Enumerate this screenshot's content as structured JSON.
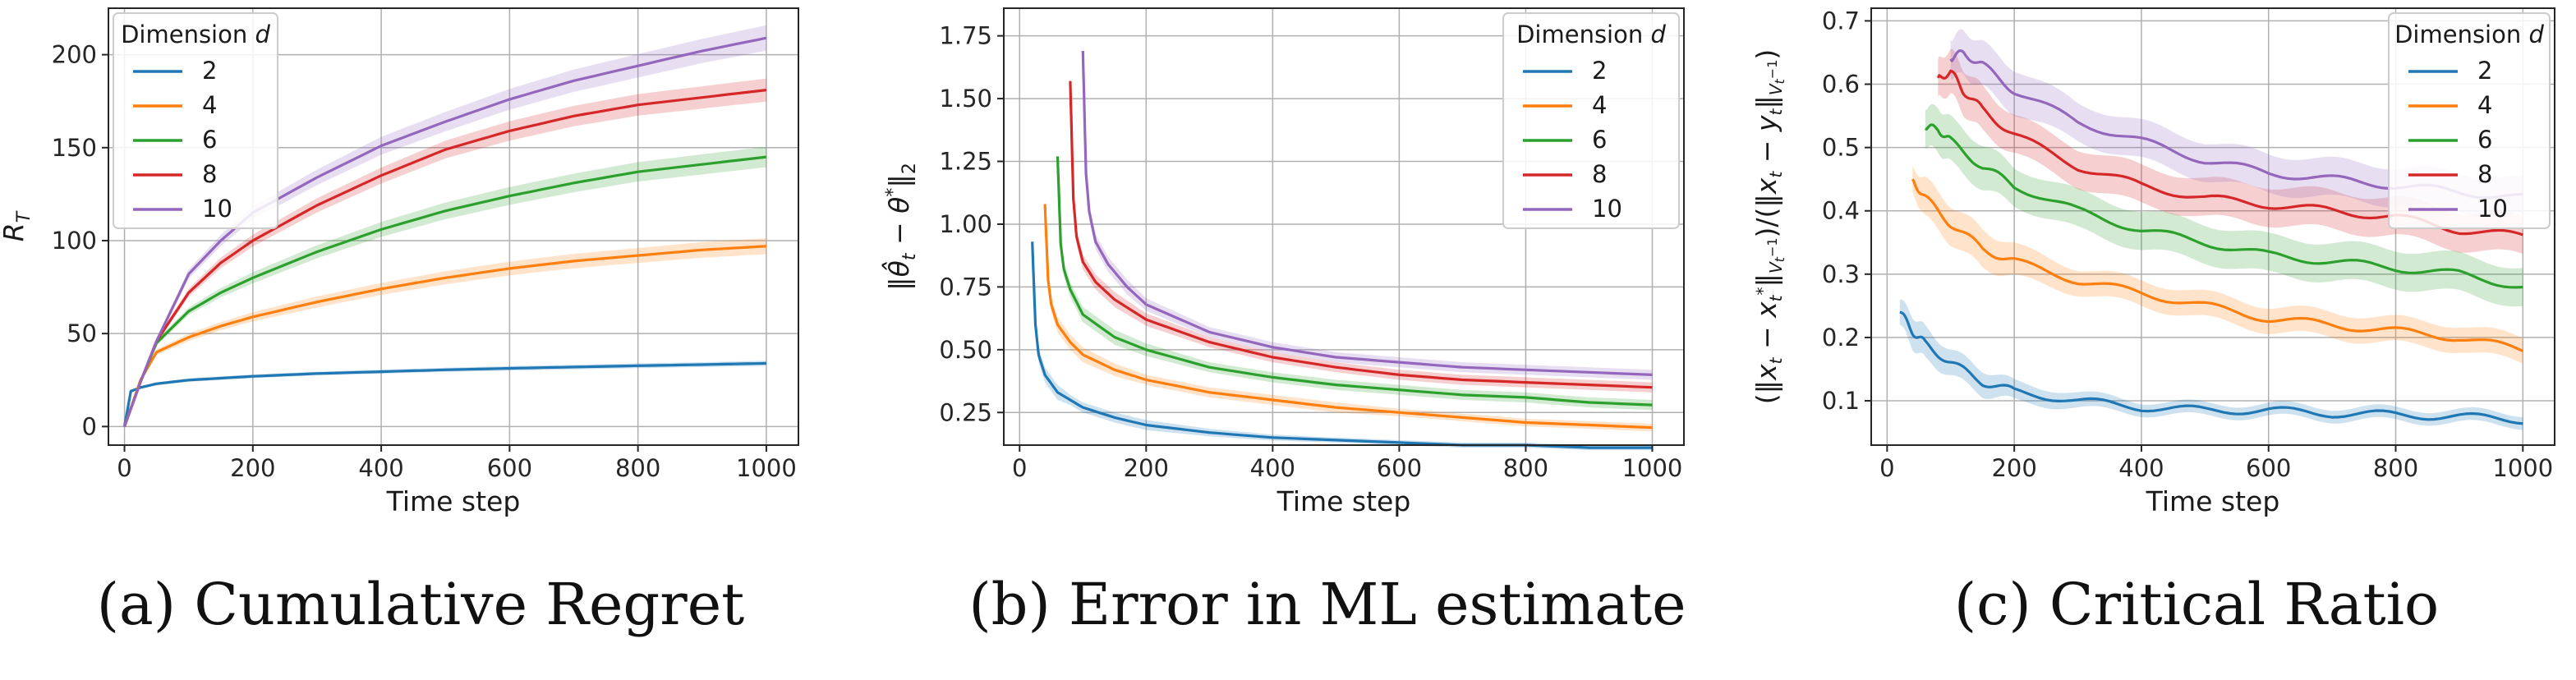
{
  "legend": {
    "title": "Dimension d",
    "entries": [
      "2",
      "4",
      "6",
      "8",
      "10"
    ],
    "colors": [
      "#1f77b4",
      "#ff7f0e",
      "#2ca02c",
      "#d62728",
      "#9467bd"
    ]
  },
  "chart_data": [
    {
      "type": "line",
      "caption": "(a) Cumulative Regret",
      "xlabel": "Time step",
      "ylabel": "R_T",
      "xlim": [
        -25,
        1050
      ],
      "ylim": [
        -10,
        225
      ],
      "xticks": [
        0,
        200,
        400,
        600,
        800,
        1000
      ],
      "yticks": [
        0,
        50,
        100,
        150,
        200
      ],
      "ytick_labels": [
        "0",
        "50",
        "100",
        "150",
        "200"
      ],
      "grid": true,
      "legend_placement": "top-left",
      "series": [
        {
          "name": "2",
          "x": [
            0,
            10,
            25,
            50,
            100,
            200,
            300,
            400,
            500,
            600,
            700,
            800,
            900,
            1000
          ],
          "y": [
            0,
            19,
            21,
            23,
            25,
            27,
            28.5,
            29.5,
            30.5,
            31.3,
            32,
            32.7,
            33.3,
            34
          ],
          "band": [
            0.6,
            0.6,
            0.8,
            0.8,
            0.9,
            1,
            1,
            1.1,
            1.1,
            1.2,
            1.2,
            1.3,
            1.3,
            1.4
          ]
        },
        {
          "name": "4",
          "x": [
            0,
            25,
            50,
            100,
            150,
            200,
            300,
            400,
            500,
            600,
            700,
            800,
            900,
            1000
          ],
          "y": [
            0,
            25,
            40,
            48,
            54,
            59,
            67,
            74,
            80,
            85,
            89,
            92,
            95,
            97
          ],
          "band": [
            0.5,
            1,
            1.5,
            2,
            2.2,
            2.5,
            3,
            3.2,
            3.5,
            3.7,
            3.9,
            4,
            4.2,
            4.3
          ]
        },
        {
          "name": "6",
          "x": [
            0,
            25,
            50,
            100,
            150,
            200,
            300,
            400,
            500,
            600,
            700,
            800,
            900,
            1000
          ],
          "y": [
            0,
            24,
            45,
            62,
            72,
            80,
            94,
            106,
            116,
            124,
            131,
            137,
            141,
            145
          ],
          "band": [
            0.5,
            1,
            1.5,
            2,
            2.5,
            3,
            3.5,
            4,
            4.5,
            4.8,
            5,
            5.2,
            5.4,
            5.5
          ]
        },
        {
          "name": "8",
          "x": [
            0,
            25,
            50,
            100,
            150,
            200,
            300,
            400,
            500,
            600,
            700,
            800,
            900,
            1000
          ],
          "y": [
            0,
            24,
            46,
            72,
            88,
            100,
            119,
            135,
            149,
            159,
            167,
            173,
            177,
            181
          ],
          "band": [
            0.5,
            1,
            1.5,
            2.2,
            2.8,
            3.2,
            3.8,
            4.3,
            4.8,
            5.2,
            5.5,
            5.8,
            6,
            6.2
          ]
        },
        {
          "name": "10",
          "x": [
            0,
            25,
            50,
            100,
            150,
            200,
            300,
            400,
            500,
            600,
            700,
            800,
            900,
            1000
          ],
          "y": [
            0,
            24,
            46,
            82,
            100,
            115,
            134,
            151,
            164,
            176,
            186,
            194,
            202,
            209
          ],
          "band": [
            0.5,
            1,
            1.5,
            2.5,
            3,
            3.5,
            4.2,
            4.8,
            5.2,
            5.6,
            6,
            6.3,
            6.5,
            6.8
          ]
        }
      ]
    },
    {
      "type": "line",
      "caption": "(b) Error in ML estimate",
      "xlabel": "Time step",
      "ylabel": "‖θ̂_t − θ*‖₂",
      "xlim": [
        -25,
        1050
      ],
      "ylim": [
        0.12,
        1.86
      ],
      "xticks": [
        0,
        200,
        400,
        600,
        800,
        1000
      ],
      "yticks": [
        0.25,
        0.5,
        0.75,
        1.0,
        1.25,
        1.5,
        1.75
      ],
      "ytick_labels": [
        "0.25",
        "0.50",
        "0.75",
        "1.00",
        "1.25",
        "1.50",
        "1.75"
      ],
      "grid": true,
      "legend_placement": "top-right",
      "series": [
        {
          "name": "2",
          "x": [
            20,
            25,
            30,
            40,
            60,
            80,
            100,
            150,
            200,
            300,
            400,
            500,
            600,
            700,
            800,
            900,
            1000
          ],
          "y": [
            0.93,
            0.6,
            0.48,
            0.4,
            0.33,
            0.3,
            0.27,
            0.23,
            0.2,
            0.17,
            0.15,
            0.14,
            0.13,
            0.12,
            0.12,
            0.11,
            0.11
          ],
          "band": [
            0.02,
            0.03,
            0.03,
            0.03,
            0.03,
            0.02,
            0.02,
            0.02,
            0.02,
            0.015,
            0.012,
            0.01,
            0.01,
            0.01,
            0.01,
            0.01,
            0.01
          ]
        },
        {
          "name": "4",
          "x": [
            40,
            45,
            50,
            60,
            80,
            100,
            150,
            200,
            300,
            400,
            500,
            600,
            700,
            800,
            900,
            1000
          ],
          "y": [
            1.08,
            0.78,
            0.68,
            0.6,
            0.53,
            0.48,
            0.42,
            0.38,
            0.33,
            0.3,
            0.27,
            0.25,
            0.23,
            0.21,
            0.2,
            0.19
          ],
          "band": [
            0.02,
            0.03,
            0.03,
            0.03,
            0.03,
            0.03,
            0.025,
            0.02,
            0.02,
            0.02,
            0.02,
            0.015,
            0.015,
            0.015,
            0.015,
            0.015
          ]
        },
        {
          "name": "6",
          "x": [
            60,
            65,
            70,
            80,
            100,
            150,
            200,
            300,
            400,
            500,
            600,
            700,
            800,
            900,
            1000
          ],
          "y": [
            1.27,
            0.92,
            0.82,
            0.74,
            0.64,
            0.55,
            0.5,
            0.43,
            0.39,
            0.36,
            0.34,
            0.32,
            0.31,
            0.29,
            0.28
          ],
          "band": [
            0.02,
            0.03,
            0.03,
            0.03,
            0.03,
            0.03,
            0.025,
            0.02,
            0.02,
            0.02,
            0.02,
            0.02,
            0.02,
            0.02,
            0.02
          ]
        },
        {
          "name": "8",
          "x": [
            80,
            85,
            90,
            100,
            120,
            150,
            200,
            300,
            400,
            500,
            600,
            700,
            800,
            900,
            1000
          ],
          "y": [
            1.57,
            1.1,
            0.95,
            0.85,
            0.77,
            0.7,
            0.62,
            0.53,
            0.47,
            0.43,
            0.4,
            0.38,
            0.37,
            0.36,
            0.35
          ],
          "band": [
            0.02,
            0.03,
            0.03,
            0.03,
            0.03,
            0.03,
            0.025,
            0.02,
            0.02,
            0.02,
            0.02,
            0.02,
            0.02,
            0.02,
            0.02
          ]
        },
        {
          "name": "10",
          "x": [
            100,
            105,
            110,
            120,
            140,
            170,
            200,
            300,
            400,
            500,
            600,
            700,
            800,
            900,
            1000
          ],
          "y": [
            1.69,
            1.2,
            1.05,
            0.93,
            0.84,
            0.75,
            0.68,
            0.57,
            0.51,
            0.47,
            0.45,
            0.43,
            0.42,
            0.41,
            0.4
          ],
          "band": [
            0.02,
            0.03,
            0.03,
            0.03,
            0.03,
            0.03,
            0.025,
            0.02,
            0.02,
            0.02,
            0.02,
            0.02,
            0.02,
            0.02,
            0.02
          ]
        }
      ]
    },
    {
      "type": "line",
      "caption": "(c) Critical Ratio",
      "xlabel": "Time step",
      "ylabel": "(‖x_t − x_t*‖_{V_t⁻¹})/(‖x_t − y_t‖_{V_t⁻¹})",
      "xlim": [
        -25,
        1050
      ],
      "ylim": [
        0.03,
        0.72
      ],
      "xticks": [
        0,
        200,
        400,
        600,
        800,
        1000
      ],
      "yticks": [
        0.1,
        0.2,
        0.3,
        0.4,
        0.5,
        0.6,
        0.7
      ],
      "ytick_labels": [
        "0.1",
        "0.2",
        "0.3",
        "0.4",
        "0.5",
        "0.6",
        "0.7"
      ],
      "grid": true,
      "legend_placement": "top-right",
      "series": [
        {
          "name": "2",
          "x": [
            20,
            40,
            60,
            100,
            150,
            200,
            300,
            400,
            500,
            600,
            700,
            800,
            900,
            1000
          ],
          "y": [
            0.24,
            0.21,
            0.19,
            0.16,
            0.13,
            0.115,
            0.1,
            0.09,
            0.085,
            0.085,
            0.08,
            0.078,
            0.075,
            0.07
          ],
          "band": [
            0.02,
            0.025,
            0.025,
            0.02,
            0.02,
            0.015,
            0.012,
            0.01,
            0.01,
            0.01,
            0.01,
            0.01,
            0.01,
            0.01
          ]
        },
        {
          "name": "4",
          "x": [
            40,
            60,
            100,
            150,
            200,
            300,
            400,
            500,
            600,
            700,
            800,
            900,
            1000
          ],
          "y": [
            0.45,
            0.42,
            0.38,
            0.34,
            0.32,
            0.29,
            0.27,
            0.25,
            0.23,
            0.22,
            0.21,
            0.2,
            0.18
          ],
          "band": [
            0.02,
            0.03,
            0.03,
            0.03,
            0.025,
            0.02,
            0.02,
            0.02,
            0.02,
            0.02,
            0.02,
            0.02,
            0.02
          ]
        },
        {
          "name": "6",
          "x": [
            60,
            80,
            100,
            150,
            200,
            300,
            400,
            500,
            600,
            700,
            800,
            900,
            1000
          ],
          "y": [
            0.53,
            0.53,
            0.51,
            0.47,
            0.44,
            0.4,
            0.37,
            0.35,
            0.33,
            0.32,
            0.31,
            0.3,
            0.28
          ],
          "band": [
            0.03,
            0.035,
            0.035,
            0.035,
            0.03,
            0.03,
            0.03,
            0.03,
            0.03,
            0.03,
            0.03,
            0.03,
            0.03
          ]
        },
        {
          "name": "8",
          "x": [
            80,
            100,
            120,
            150,
            200,
            300,
            400,
            500,
            600,
            700,
            800,
            900,
            1000
          ],
          "y": [
            0.61,
            0.62,
            0.59,
            0.56,
            0.52,
            0.47,
            0.44,
            0.42,
            0.41,
            0.4,
            0.39,
            0.37,
            0.36
          ],
          "band": [
            0.03,
            0.035,
            0.035,
            0.035,
            0.03,
            0.03,
            0.03,
            0.03,
            0.03,
            0.03,
            0.03,
            0.03,
            0.03
          ]
        },
        {
          "name": "10",
          "x": [
            100,
            120,
            150,
            200,
            300,
            400,
            500,
            600,
            700,
            800,
            900,
            1000
          ],
          "y": [
            0.64,
            0.65,
            0.63,
            0.59,
            0.54,
            0.51,
            0.48,
            0.46,
            0.45,
            0.44,
            0.43,
            0.42
          ],
          "band": [
            0.03,
            0.035,
            0.035,
            0.035,
            0.03,
            0.03,
            0.03,
            0.03,
            0.03,
            0.03,
            0.03,
            0.03
          ]
        }
      ]
    }
  ]
}
